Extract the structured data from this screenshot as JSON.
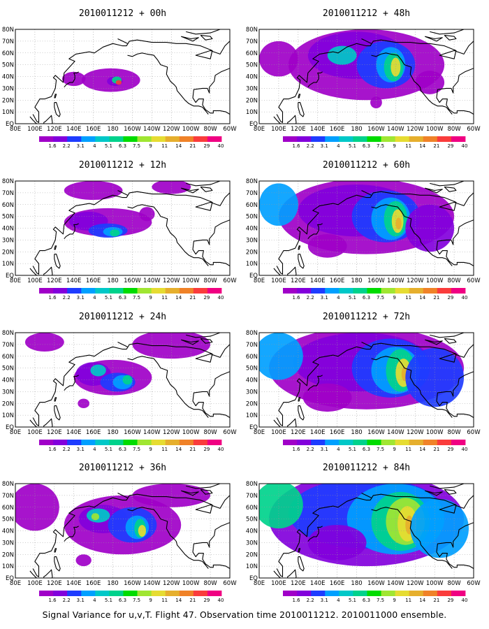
{
  "caption": "Signal Variance for u,v,T. Flight 47. Observation time 2010011212. 2010011000 ensemble.",
  "colorbar": {
    "labels": [
      "1.6",
      "2.2",
      "3.1",
      "4",
      "5.1",
      "6.3",
      "7.5",
      "9",
      "11",
      "14",
      "21",
      "29",
      "40"
    ],
    "colors": [
      "#a000c8",
      "#8200dc",
      "#1e3cff",
      "#00a0ff",
      "#00c8c8",
      "#00d28c",
      "#00dc00",
      "#a0e632",
      "#e6dc32",
      "#e6af2d",
      "#f08228",
      "#fa3c3c",
      "#f00082"
    ]
  },
  "axes": {
    "lon_labels": [
      "80E",
      "100E",
      "120E",
      "140E",
      "160E",
      "180",
      "160W",
      "140W",
      "120W",
      "100W",
      "80W",
      "60W"
    ],
    "lat_labels": [
      "80N",
      "70N",
      "60N",
      "50N",
      "40N",
      "30N",
      "20N",
      "10N",
      "EQ"
    ]
  },
  "chart_data": [
    {
      "type": "heatmap",
      "title": "2010011212 + 00h",
      "lead_hours": 0,
      "blobs": [
        [
          178,
          37,
          30,
          10,
          "#a000c8"
        ],
        [
          140,
          38,
          12,
          6,
          "#a000c8"
        ],
        [
          182,
          36,
          8,
          4,
          "#8200dc"
        ],
        [
          184,
          37,
          5,
          3,
          "#00d28c"
        ],
        [
          186,
          35,
          3,
          2,
          "#fa3c3c"
        ]
      ]
    },
    {
      "type": "heatmap",
      "title": "2010011212 + 12h",
      "lead_hours": 12,
      "blobs": [
        [
          175,
          45,
          45,
          12,
          "#a000c8"
        ],
        [
          155,
          46,
          20,
          8,
          "#8200dc"
        ],
        [
          175,
          38,
          20,
          6,
          "#1e3cff"
        ],
        [
          180,
          37,
          10,
          4,
          "#00a0ff"
        ],
        [
          182,
          36,
          5,
          3,
          "#00d28c"
        ],
        [
          215,
          52,
          8,
          6,
          "#a000c8"
        ],
        [
          160,
          72,
          30,
          8,
          "#a000c8"
        ],
        [
          240,
          75,
          20,
          6,
          "#a000c8"
        ]
      ]
    },
    {
      "type": "heatmap",
      "title": "2010011212 + 24h",
      "lead_hours": 24,
      "blobs": [
        [
          180,
          42,
          40,
          15,
          "#a000c8"
        ],
        [
          160,
          45,
          18,
          10,
          "#8200dc"
        ],
        [
          185,
          38,
          18,
          8,
          "#1e3cff"
        ],
        [
          190,
          38,
          10,
          6,
          "#00a0ff"
        ],
        [
          195,
          40,
          5,
          4,
          "#00d28c"
        ],
        [
          165,
          48,
          8,
          5,
          "#00c8c8"
        ],
        [
          240,
          70,
          40,
          12,
          "#a000c8"
        ],
        [
          110,
          72,
          20,
          8,
          "#a000c8"
        ],
        [
          150,
          20,
          6,
          4,
          "#a000c8"
        ]
      ]
    },
    {
      "type": "heatmap",
      "title": "2010011212 + 36h",
      "lead_hours": 36,
      "blobs": [
        [
          190,
          45,
          60,
          25,
          "#a000c8"
        ],
        [
          170,
          50,
          25,
          12,
          "#8200dc"
        ],
        [
          200,
          45,
          25,
          15,
          "#1e3cff"
        ],
        [
          205,
          43,
          12,
          10,
          "#00a0ff"
        ],
        [
          208,
          42,
          6,
          8,
          "#00d28c"
        ],
        [
          210,
          40,
          4,
          5,
          "#e6dc32"
        ],
        [
          165,
          53,
          12,
          6,
          "#00c8c8"
        ],
        [
          162,
          52,
          4,
          3,
          "#a0e632"
        ],
        [
          100,
          60,
          25,
          20,
          "#a000c8"
        ],
        [
          240,
          70,
          40,
          10,
          "#a000c8"
        ],
        [
          150,
          15,
          8,
          5,
          "#a000c8"
        ]
      ]
    },
    {
      "type": "heatmap",
      "title": "2010011212 + 48h",
      "lead_hours": 48,
      "blobs": [
        [
          190,
          50,
          80,
          30,
          "#a000c8"
        ],
        [
          180,
          58,
          50,
          20,
          "#8200dc"
        ],
        [
          210,
          50,
          30,
          20,
          "#1e3cff"
        ],
        [
          215,
          50,
          15,
          15,
          "#00a0ff"
        ],
        [
          218,
          48,
          10,
          12,
          "#00d28c"
        ],
        [
          220,
          48,
          5,
          8,
          "#e6dc32"
        ],
        [
          165,
          58,
          15,
          8,
          "#00c8c8"
        ],
        [
          100,
          55,
          20,
          15,
          "#a000c8"
        ],
        [
          200,
          18,
          6,
          5,
          "#a000c8"
        ],
        [
          255,
          35,
          15,
          10,
          "#a000c8"
        ]
      ]
    },
    {
      "type": "heatmap",
      "title": "2010011212 + 60h",
      "lead_hours": 60,
      "blobs": [
        [
          190,
          50,
          90,
          32,
          "#a000c8"
        ],
        [
          180,
          55,
          60,
          22,
          "#8200dc"
        ],
        [
          210,
          50,
          35,
          22,
          "#1e3cff"
        ],
        [
          215,
          48,
          20,
          18,
          "#00a0ff"
        ],
        [
          220,
          48,
          12,
          15,
          "#00d28c"
        ],
        [
          222,
          46,
          6,
          10,
          "#e6dc32"
        ],
        [
          223,
          44,
          3,
          5,
          "#e6af2d"
        ],
        [
          100,
          60,
          20,
          18,
          "#00a0ff"
        ],
        [
          255,
          40,
          25,
          20,
          "#8200dc"
        ],
        [
          150,
          25,
          20,
          10,
          "#a000c8"
        ]
      ]
    },
    {
      "type": "heatmap",
      "title": "2010011212 + 72h",
      "lead_hours": 72,
      "blobs": [
        [
          190,
          50,
          100,
          35,
          "#a000c8"
        ],
        [
          185,
          55,
          70,
          25,
          "#8200dc"
        ],
        [
          215,
          50,
          40,
          25,
          "#1e3cff"
        ],
        [
          220,
          48,
          25,
          20,
          "#00a0ff"
        ],
        [
          225,
          48,
          15,
          18,
          "#00d28c"
        ],
        [
          228,
          46,
          8,
          12,
          "#e6dc32"
        ],
        [
          229,
          45,
          3,
          6,
          "#e6af2d"
        ],
        [
          100,
          60,
          25,
          20,
          "#00a0ff"
        ],
        [
          260,
          42,
          30,
          25,
          "#1e3cff"
        ],
        [
          150,
          25,
          25,
          12,
          "#a000c8"
        ]
      ]
    },
    {
      "type": "heatmap",
      "title": "2010011212 + 84h",
      "lead_hours": 84,
      "blobs": [
        [
          190,
          50,
          100,
          40,
          "#8200dc"
        ],
        [
          190,
          55,
          80,
          30,
          "#1e3cff"
        ],
        [
          220,
          50,
          50,
          30,
          "#00a0ff"
        ],
        [
          225,
          48,
          30,
          25,
          "#00d28c"
        ],
        [
          230,
          48,
          20,
          20,
          "#a0e632"
        ],
        [
          232,
          46,
          10,
          15,
          "#e6dc32"
        ],
        [
          234,
          45,
          4,
          8,
          "#e6af2d"
        ],
        [
          100,
          62,
          25,
          20,
          "#00d28c"
        ],
        [
          265,
          42,
          30,
          25,
          "#00a0ff"
        ],
        [
          160,
          30,
          30,
          15,
          "#8200dc"
        ]
      ]
    }
  ]
}
